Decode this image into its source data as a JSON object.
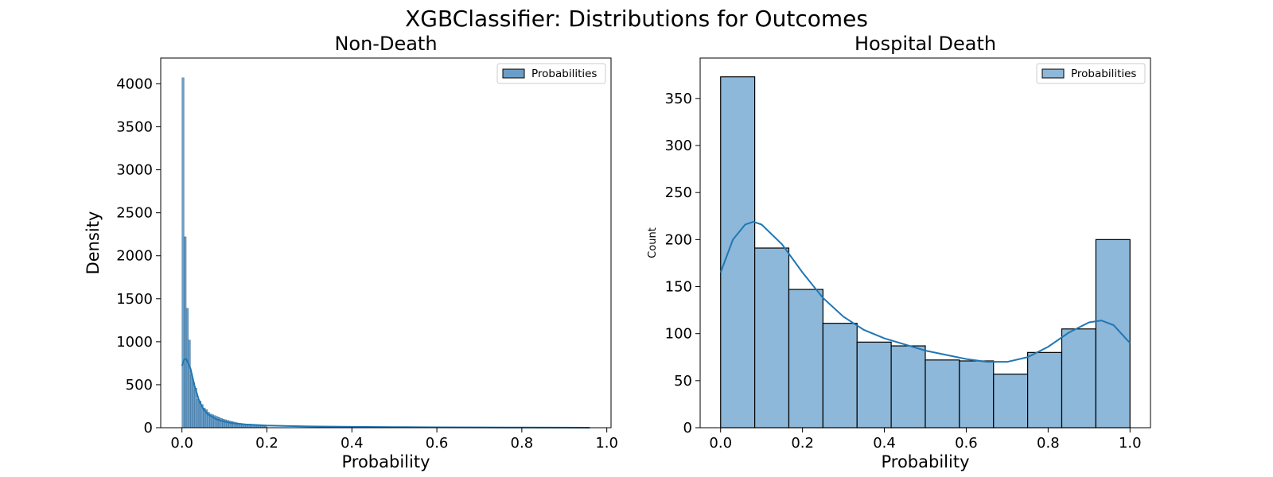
{
  "suptitle": "XGBClassifier: Distributions for Outcomes",
  "chart_data": [
    {
      "type": "bar",
      "title": "Non-Death",
      "xlabel": "Probability",
      "ylabel": "Density",
      "xlim": [
        -0.05,
        1.01
      ],
      "ylim": [
        0,
        4300
      ],
      "xticks": [
        "0.0",
        "0.2",
        "0.4",
        "0.6",
        "0.8",
        "1.0"
      ],
      "yticks": [
        "0",
        "500",
        "1000",
        "1500",
        "2000",
        "2500",
        "3000",
        "3500",
        "4000"
      ],
      "legend": {
        "label": "Probabilities",
        "placement": "top-right"
      },
      "bin_start": 0.0,
      "bin_width": 0.005,
      "values": [
        4070,
        2220,
        1390,
        1020,
        620,
        520,
        460,
        330,
        310,
        270,
        230,
        210,
        180,
        160,
        150,
        140,
        130,
        120,
        110,
        100,
        92,
        85,
        78,
        72,
        66,
        60,
        55,
        51,
        47,
        44,
        41,
        38,
        35,
        33,
        31,
        29,
        27,
        26,
        25,
        24
      ],
      "kde": {
        "x": [
          0.0,
          0.005,
          0.01,
          0.02,
          0.03,
          0.04,
          0.05,
          0.06,
          0.08,
          0.1,
          0.12,
          0.15,
          0.2,
          0.25,
          0.3,
          0.4,
          0.5,
          0.6,
          0.7,
          0.8,
          0.9,
          0.96
        ],
        "y": [
          720,
          790,
          800,
          690,
          480,
          320,
          220,
          160,
          100,
          70,
          52,
          38,
          26,
          20,
          15,
          10,
          7,
          5,
          3,
          2,
          1,
          0.5
        ]
      },
      "color": "#1f77b4",
      "bar_fill": "#6a9ec8"
    },
    {
      "type": "bar",
      "title": "Hospital Death",
      "xlabel": "Probability",
      "ylabel": "Count",
      "xlim": [
        -0.05,
        1.05
      ],
      "ylim": [
        0,
        393
      ],
      "xticks": [
        "0.0",
        "0.2",
        "0.4",
        "0.6",
        "0.8",
        "1.0"
      ],
      "yticks": [
        "0",
        "50",
        "100",
        "150",
        "200",
        "250",
        "300",
        "350"
      ],
      "legend": {
        "label": "Probabilities",
        "placement": "top-right"
      },
      "bin_start": 0.0,
      "bin_width": 0.08333,
      "values": [
        373,
        191,
        147,
        111,
        91,
        87,
        72,
        71,
        57,
        80,
        105,
        200
      ],
      "kde": {
        "x": [
          0.0,
          0.03,
          0.06,
          0.08,
          0.1,
          0.15,
          0.2,
          0.25,
          0.3,
          0.35,
          0.4,
          0.5,
          0.6,
          0.65,
          0.7,
          0.75,
          0.8,
          0.85,
          0.9,
          0.93,
          0.96,
          1.0
        ],
        "y": [
          165,
          200,
          216,
          219,
          216,
          195,
          165,
          138,
          118,
          104,
          95,
          82,
          73,
          70,
          70,
          75,
          86,
          101,
          112,
          114,
          109,
          90
        ]
      },
      "color": "#1f77b4",
      "bar_fill": "#8db8d9"
    }
  ]
}
